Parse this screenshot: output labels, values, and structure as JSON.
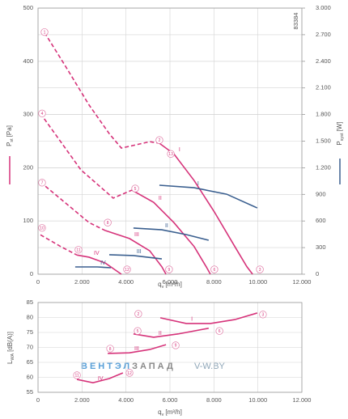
{
  "chart_data": [
    {
      "type": "line",
      "code": "83384",
      "x_label": {
        "main": "q",
        "sub": "v",
        "unit": "[m³/h]"
      },
      "y_label": {
        "main": "P",
        "sub": "st",
        "unit": "[Pa]"
      },
      "y2_label": {
        "main": "P",
        "sub": "syst",
        "unit": "[W]"
      },
      "xlim": [
        0,
        12000
      ],
      "xticks": [
        0,
        {
          "value": 2000,
          "label": "2.000"
        },
        {
          "value": 4000,
          "label": "4.000"
        },
        {
          "value": 6000,
          "label": "6.000"
        },
        {
          "value": 8000,
          "label": "8.000"
        },
        {
          "value": 10000,
          "label": "10.000"
        },
        {
          "value": 12000,
          "label": "12.000"
        }
      ],
      "ylim": [
        0,
        500
      ],
      "yticks": [
        0,
        100,
        200,
        300,
        400,
        500
      ],
      "y2lim": [
        0,
        3000
      ],
      "y2ticks": [
        0,
        300,
        600,
        900,
        {
          "value": 1200,
          "label": "1.200"
        },
        {
          "value": 1500,
          "label": "1.500"
        },
        {
          "value": 1800,
          "label": "1.800"
        },
        {
          "value": 2100,
          "label": "2.100"
        },
        {
          "value": 2400,
          "label": "2.400"
        },
        {
          "value": 2700,
          "label": "2.700"
        },
        {
          "value": 3000,
          "label": "3.000"
        }
      ],
      "grid": true,
      "series": [
        {
          "color": "#d6337a",
          "dashed": true,
          "x": [
            295,
            1215,
            2320,
            3240,
            3790,
            4340,
            5080,
            5520
          ],
          "values": [
            454,
            393,
            318,
            264,
            237,
            242,
            249,
            246
          ]
        },
        {
          "name": "I",
          "color": "#d6337a",
          "x": [
            5520,
            6180,
            7100,
            8020,
            8950,
            9500,
            9760
          ],
          "values": [
            246,
            226,
            176,
            117,
            52,
            14,
            0
          ]
        },
        {
          "color": "#d6337a",
          "dashed": true,
          "x": [
            110,
            1950,
            3420,
            4270
          ],
          "values": [
            302,
            196,
            143,
            158
          ]
        },
        {
          "name": "II",
          "color": "#d6337a",
          "x": [
            4270,
            5260,
            6180,
            7100,
            7650,
            7840
          ],
          "values": [
            158,
            135,
            97,
            52,
            14,
            0
          ]
        },
        {
          "color": "#d6337a",
          "dashed": true,
          "x": [
            110,
            1215,
            2320,
            3060
          ],
          "values": [
            173,
            135,
            97,
            82
          ]
        },
        {
          "name": "III",
          "color": "#d6337a",
          "x": [
            3060,
            4160,
            5080,
            5630,
            5820
          ],
          "values": [
            82,
            67,
            44,
            14,
            0
          ]
        },
        {
          "color": "#d6337a",
          "dashed": true,
          "x": [
            110,
            1030,
            1770
          ],
          "values": [
            74,
            52,
            36
          ]
        },
        {
          "name": "IV",
          "color": "#d6337a",
          "x": [
            1770,
            2320,
            3060,
            3790
          ],
          "values": [
            36,
            32,
            21,
            0
          ]
        },
        {
          "name": "I",
          "color": "#3a5f8f",
          "axis": "y2",
          "x": [
            5520,
            7100,
            8580,
            9970
          ],
          "values": [
            1003,
            975,
            902,
            747
          ]
        },
        {
          "name": "II",
          "color": "#3a5f8f",
          "axis": "y2",
          "x": [
            4340,
            5630,
            6740,
            7760
          ],
          "values": [
            520,
            501,
            447,
            383
          ]
        },
        {
          "name": "III",
          "color": "#3a5f8f",
          "axis": "y2",
          "x": [
            3240,
            4340,
            5630
          ],
          "values": [
            219,
            210,
            173
          ]
        },
        {
          "name": "IV",
          "color": "#3a5f8f",
          "axis": "y2",
          "x": [
            1690,
            2690,
            3310
          ],
          "values": [
            82,
            82,
            73
          ]
        }
      ],
      "markers": [
        {
          "label": "1",
          "x": 295,
          "y": 455
        },
        {
          "label": "4",
          "x": 184,
          "y": 302
        },
        {
          "label": "7",
          "x": 184,
          "y": 172
        },
        {
          "label": "10",
          "x": 184,
          "y": 87
        },
        {
          "label": "2",
          "x": 5520,
          "y": 252
        },
        {
          "label": "5",
          "x": 4420,
          "y": 161
        },
        {
          "label": "8",
          "x": 3170,
          "y": 97
        },
        {
          "label": "11",
          "x": 1840,
          "y": 46
        },
        {
          "label": "3",
          "x": 10090,
          "y": 9
        },
        {
          "label": "6",
          "x": 8020,
          "y": 9
        },
        {
          "label": "9",
          "x": 5960,
          "y": 9
        },
        {
          "label": "12",
          "x": 4050,
          "y": 9
        },
        {
          "label": "13",
          "x": 6040,
          "y": 226
        }
      ]
    },
    {
      "type": "line",
      "x_label": {
        "main": "q",
        "sub": "v",
        "unit": "[m³/h]"
      },
      "y_label": {
        "main": "L",
        "sub": "WA",
        "unit": "[dB(A)]"
      },
      "xlim": [
        0,
        12000
      ],
      "xticks": [
        0,
        {
          "value": 2000,
          "label": "2.000"
        },
        {
          "value": 4000,
          "label": "4.000"
        },
        {
          "value": 6000,
          "label": "6.000"
        },
        {
          "value": 8000,
          "label": "8.000"
        },
        {
          "value": 10000,
          "label": "10.000"
        },
        {
          "value": 12000,
          "label": "12.000"
        }
      ],
      "ylim": [
        55,
        85
      ],
      "yticks": [
        55,
        60,
        65,
        70,
        75,
        80,
        85
      ],
      "grid": true,
      "series": [
        {
          "name": "I",
          "color": "#d6337a",
          "x": [
            5560,
            6740,
            7840,
            8950,
            9970
          ],
          "values": [
            79.9,
            78,
            78,
            79.3,
            81.5
          ]
        },
        {
          "name": "II",
          "color": "#d6337a",
          "x": [
            4340,
            5260,
            6370,
            7760
          ],
          "values": [
            74.5,
            73.4,
            74.5,
            76.4
          ]
        },
        {
          "name": "III",
          "color": "#d6337a",
          "x": [
            3170,
            4160,
            5080,
            5820
          ],
          "values": [
            68,
            68.2,
            69.3,
            70.9
          ]
        },
        {
          "name": "IV",
          "color": "#d6337a",
          "x": [
            1770,
            2500,
            3240,
            3860
          ],
          "values": [
            59.3,
            58.2,
            59.6,
            61.5
          ]
        }
      ],
      "markers": [
        {
          "label": "2",
          "x": 4560,
          "y": 81.2
        },
        {
          "label": "5",
          "x": 4530,
          "y": 75.5
        },
        {
          "label": "8",
          "x": 3280,
          "y": 69.6
        },
        {
          "label": "11",
          "x": 1770,
          "y": 60.7
        },
        {
          "label": "3",
          "x": 10230,
          "y": 81
        },
        {
          "label": "6",
          "x": 8250,
          "y": 75.5
        },
        {
          "label": "9",
          "x": 6260,
          "y": 70.7
        },
        {
          "label": "12",
          "x": 4160,
          "y": 61.5
        }
      ],
      "brand": "ВЕНТЭЛ",
      "brand2": "ЗАПАД",
      "site": "V-W.BY"
    }
  ]
}
